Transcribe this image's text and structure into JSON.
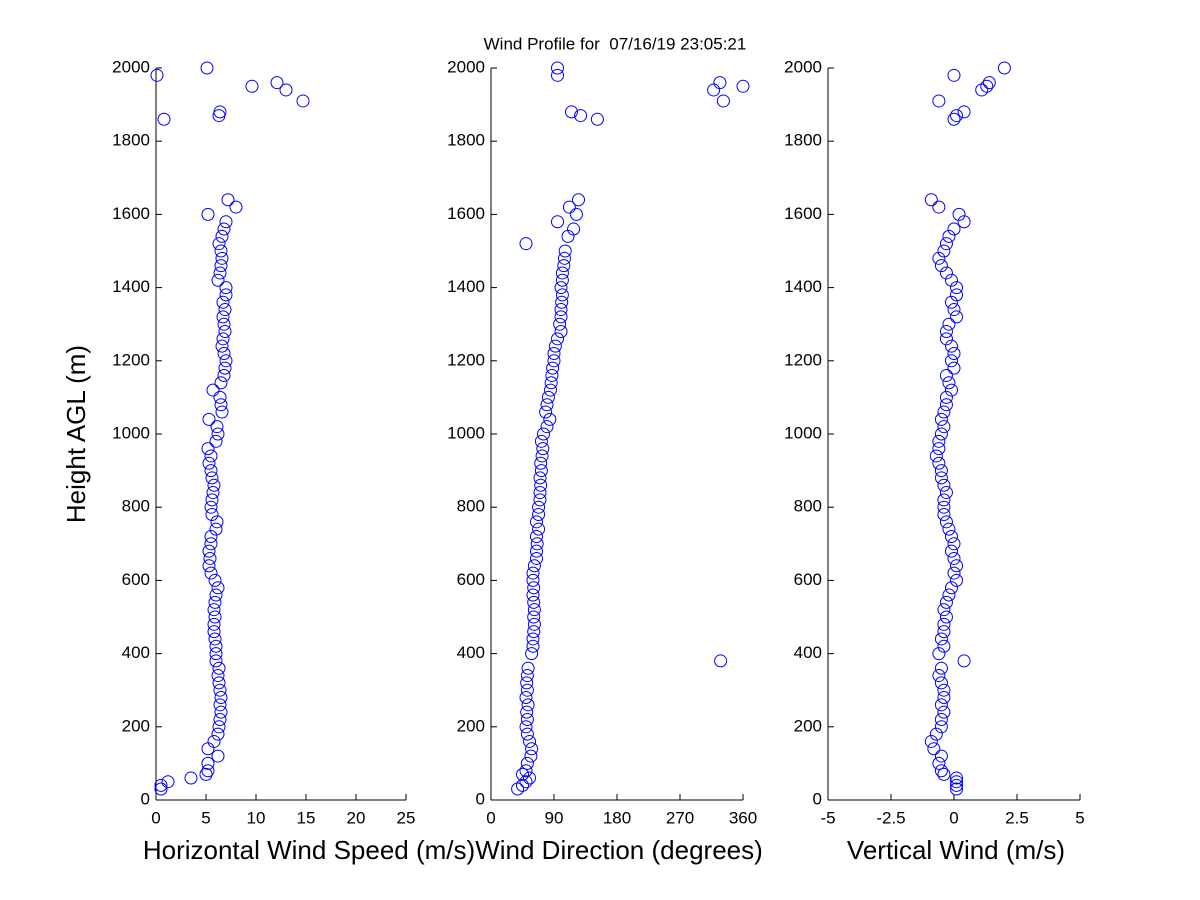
{
  "title": "Wind Profile for  07/16/19 23:05:21",
  "chart_data": [
    {
      "type": "scatter",
      "xlabel": "Horizontal Wind Speed (m/s)",
      "ylabel": "Height AGL (m)",
      "color": "#0000ff",
      "xlim": [
        0,
        25
      ],
      "xticks": [
        0,
        5,
        10,
        15,
        20,
        25
      ],
      "ylim": [
        0,
        2000
      ],
      "yticks": [
        0,
        200,
        400,
        600,
        800,
        1000,
        1200,
        1400,
        1600,
        1800,
        2000
      ],
      "x": [
        0.5,
        0.5,
        1.2,
        3.5,
        5,
        5.2,
        5.2,
        6.2,
        5.2,
        5.8,
        6.2,
        6.3,
        6.4,
        6.5,
        6.4,
        6.5,
        6.4,
        6.3,
        6.2,
        6.3,
        6.0,
        6.0,
        6.0,
        5.9,
        5.8,
        5.8,
        5.9,
        5.8,
        5.9,
        6.0,
        6.2,
        5.9,
        5.5,
        5.3,
        5.4,
        5.3,
        5.5,
        5.5,
        6.0,
        6.1,
        5.6,
        5.5,
        5.6,
        5.7,
        5.8,
        5.6,
        5.5,
        5.3,
        5.5,
        5.2,
        6.0,
        6.2,
        6.1,
        5.3,
        6.6,
        6.5,
        6.4,
        5.7,
        6.5,
        6.8,
        6.9,
        7.0,
        6.8,
        6.6,
        6.7,
        6.9,
        6.8,
        6.7,
        6.9,
        6.7,
        7.0,
        7.0,
        6.2,
        6.4,
        6.5,
        6.6,
        6.5,
        6.3,
        6.6,
        6.8,
        7.0,
        5.2,
        8.0,
        7.2,
        0.8,
        6.3,
        6.4,
        14.7,
        13.0,
        9.6,
        12.1,
        0.1,
        5.1
      ],
      "y": [
        30,
        40,
        50,
        60,
        70,
        80,
        100,
        120,
        140,
        160,
        180,
        200,
        220,
        240,
        260,
        280,
        300,
        320,
        340,
        360,
        380,
        400,
        420,
        440,
        460,
        480,
        500,
        520,
        540,
        560,
        580,
        600,
        620,
        640,
        660,
        680,
        700,
        720,
        740,
        760,
        780,
        800,
        820,
        840,
        860,
        880,
        900,
        920,
        940,
        960,
        980,
        1000,
        1020,
        1040,
        1060,
        1080,
        1100,
        1120,
        1140,
        1160,
        1180,
        1200,
        1220,
        1240,
        1260,
        1280,
        1300,
        1320,
        1340,
        1360,
        1380,
        1400,
        1420,
        1440,
        1460,
        1480,
        1500,
        1520,
        1540,
        1560,
        1580,
        1600,
        1620,
        1640,
        1860,
        1870,
        1880,
        1910,
        1940,
        1950,
        1960,
        1980,
        2000
      ]
    },
    {
      "type": "scatter",
      "xlabel": "Wind Direction (degrees)",
      "color": "#0000ff",
      "xlim": [
        0,
        360
      ],
      "xticks": [
        0,
        90,
        180,
        270,
        360
      ],
      "ylim": [
        0,
        2000
      ],
      "yticks": [
        0,
        200,
        400,
        600,
        800,
        1000,
        1200,
        1400,
        1600,
        1800,
        2000
      ],
      "x": [
        38,
        45,
        50,
        55,
        45,
        50,
        52,
        57,
        58,
        55,
        52,
        50,
        52,
        51,
        53,
        50,
        52,
        51,
        52,
        53,
        328,
        58,
        60,
        60,
        61,
        62,
        61,
        62,
        61,
        60,
        61,
        60,
        60,
        62,
        65,
        65,
        66,
        65,
        68,
        65,
        68,
        68,
        70,
        70,
        71,
        70,
        72,
        71,
        73,
        74,
        72,
        75,
        80,
        84,
        78,
        80,
        82,
        85,
        86,
        87,
        88,
        90,
        90,
        92,
        95,
        100,
        98,
        100,
        100,
        101,
        102,
        100,
        102,
        102,
        104,
        105,
        106,
        50,
        110,
        118,
        95,
        122,
        112,
        125,
        152,
        128,
        115,
        332,
        318,
        360,
        327,
        95,
        95
      ],
      "y": [
        30,
        40,
        50,
        60,
        70,
        80,
        100,
        120,
        140,
        160,
        180,
        200,
        220,
        240,
        260,
        280,
        300,
        320,
        340,
        360,
        380,
        400,
        420,
        440,
        460,
        480,
        500,
        520,
        540,
        560,
        580,
        600,
        620,
        640,
        660,
        680,
        700,
        720,
        740,
        760,
        780,
        800,
        820,
        840,
        860,
        880,
        900,
        920,
        940,
        960,
        980,
        1000,
        1020,
        1040,
        1060,
        1080,
        1100,
        1120,
        1140,
        1160,
        1180,
        1200,
        1220,
        1240,
        1260,
        1280,
        1300,
        1320,
        1340,
        1360,
        1380,
        1400,
        1420,
        1440,
        1460,
        1480,
        1500,
        1520,
        1540,
        1560,
        1580,
        1600,
        1620,
        1640,
        1860,
        1870,
        1880,
        1910,
        1940,
        1950,
        1960,
        1980,
        2000
      ]
    },
    {
      "type": "scatter",
      "xlabel": "Vertical Wind (m/s)",
      "color": "#0000ff",
      "xlim": [
        -5,
        5
      ],
      "xticks": [
        -5,
        -2.5,
        0,
        2.5,
        5
      ],
      "ylim": [
        0,
        2000
      ],
      "yticks": [
        0,
        200,
        400,
        600,
        800,
        1000,
        1200,
        1400,
        1600,
        1800,
        2000
      ],
      "x": [
        0.1,
        0.1,
        0.1,
        0.1,
        -0.4,
        -0.5,
        -0.6,
        -0.5,
        -0.8,
        -0.9,
        -0.7,
        -0.5,
        -0.5,
        -0.4,
        -0.5,
        -0.4,
        -0.4,
        -0.5,
        -0.6,
        -0.5,
        0.4,
        -0.6,
        -0.4,
        -0.5,
        -0.4,
        -0.4,
        -0.3,
        -0.4,
        -0.3,
        -0.2,
        -0.1,
        0.1,
        0.0,
        0.1,
        0.0,
        -0.1,
        0.0,
        -0.1,
        -0.2,
        -0.3,
        -0.4,
        -0.4,
        -0.4,
        -0.3,
        -0.4,
        -0.5,
        -0.5,
        -0.6,
        -0.7,
        -0.6,
        -0.6,
        -0.5,
        -0.4,
        -0.5,
        -0.4,
        -0.3,
        -0.3,
        -0.1,
        -0.2,
        -0.3,
        0.0,
        -0.1,
        0.0,
        -0.1,
        -0.3,
        -0.3,
        -0.2,
        0.1,
        0.0,
        -0.1,
        0.1,
        0.1,
        -0.1,
        -0.3,
        -0.5,
        -0.6,
        -0.4,
        -0.3,
        -0.2,
        0.0,
        0.4,
        0.2,
        -0.6,
        -0.9,
        0.0,
        0.1,
        0.4,
        -0.6,
        1.1,
        1.3,
        1.4,
        0.0,
        2.0
      ],
      "y": [
        30,
        40,
        50,
        60,
        70,
        80,
        100,
        120,
        140,
        160,
        180,
        200,
        220,
        240,
        260,
        280,
        300,
        320,
        340,
        360,
        380,
        400,
        420,
        440,
        460,
        480,
        500,
        520,
        540,
        560,
        580,
        600,
        620,
        640,
        660,
        680,
        700,
        720,
        740,
        760,
        780,
        800,
        820,
        840,
        860,
        880,
        900,
        920,
        940,
        960,
        980,
        1000,
        1020,
        1040,
        1060,
        1080,
        1100,
        1120,
        1140,
        1160,
        1180,
        1200,
        1220,
        1240,
        1260,
        1280,
        1300,
        1320,
        1340,
        1360,
        1380,
        1400,
        1420,
        1440,
        1460,
        1480,
        1500,
        1520,
        1540,
        1560,
        1580,
        1600,
        1620,
        1640,
        1860,
        1870,
        1880,
        1910,
        1940,
        1950,
        1960,
        1980,
        2000
      ]
    }
  ]
}
